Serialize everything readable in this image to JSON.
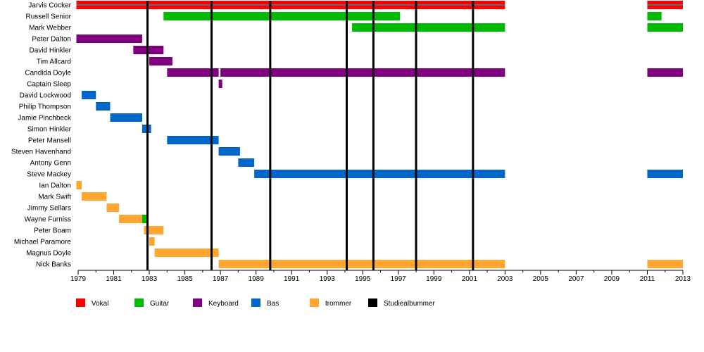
{
  "chart_data": {
    "type": "timeline",
    "x_range": [
      1979,
      2013
    ],
    "ticks": [
      "1979",
      "1981",
      "1983",
      "1985",
      "1987",
      "1989",
      "1991",
      "1993",
      "1995",
      "1997",
      "1999",
      "2001",
      "2003",
      "2005",
      "2007",
      "2009",
      "2011",
      "2013"
    ],
    "roles": [
      {
        "key": "vocal",
        "label": "Vokal",
        "color": "#ff0000"
      },
      {
        "key": "guitar",
        "label": "Guitar",
        "color": "#00bb00"
      },
      {
        "key": "keyboard",
        "label": "Keyboard",
        "color": "#800080"
      },
      {
        "key": "bass",
        "label": "Bas",
        "color": "#0066cc"
      },
      {
        "key": "drums",
        "label": "trommer",
        "color": "#ffa530"
      },
      {
        "key": "album",
        "label": "Studiealbummer",
        "color": "#000000"
      }
    ],
    "albums": [
      1982.9,
      1986.5,
      1989.8,
      1994.1,
      1995.6,
      1998.0,
      2001.2
    ],
    "members": [
      {
        "name": "Jarvis Cocker",
        "periods": [
          {
            "role": "vocal",
            "start": 1978.9,
            "end": 2003.0
          },
          {
            "role": "vocal",
            "start": 2011.0,
            "end": 2013.0
          }
        ]
      },
      {
        "name": "Russell Senior",
        "periods": [
          {
            "role": "guitar",
            "start": 1983.8,
            "end": 1997.1
          },
          {
            "role": "guitar",
            "start": 2011.0,
            "end": 2011.8
          }
        ]
      },
      {
        "name": "Mark Webber",
        "periods": [
          {
            "role": "guitar",
            "start": 1994.4,
            "end": 2003.0
          },
          {
            "role": "guitar",
            "start": 2011.0,
            "end": 2013.0
          }
        ]
      },
      {
        "name": "Peter Dalton",
        "periods": [
          {
            "role": "keyboard",
            "start": 1978.9,
            "end": 1982.6
          }
        ]
      },
      {
        "name": "David Hinkler",
        "periods": [
          {
            "role": "keyboard",
            "start": 1982.1,
            "end": 1983.8
          }
        ]
      },
      {
        "name": "Tim Allcard",
        "periods": [
          {
            "role": "keyboard",
            "start": 1983.0,
            "end": 1984.3
          }
        ]
      },
      {
        "name": "Candida Doyle",
        "periods": [
          {
            "role": "keyboard",
            "start": 1984.0,
            "end": 1986.9
          },
          {
            "role": "keyboard",
            "start": 1987.0,
            "end": 2003.0
          },
          {
            "role": "keyboard",
            "start": 2011.0,
            "end": 2013.0
          }
        ]
      },
      {
        "name": "Captain Sleep",
        "periods": [
          {
            "role": "keyboard",
            "start": 1986.9,
            "end": 1987.1
          }
        ]
      },
      {
        "name": "David Lockwood",
        "periods": [
          {
            "role": "bass",
            "start": 1979.2,
            "end": 1980.0
          }
        ]
      },
      {
        "name": "Philip Thompson",
        "periods": [
          {
            "role": "bass",
            "start": 1980.0,
            "end": 1980.8
          }
        ]
      },
      {
        "name": "Jamie Pinchbeck",
        "periods": [
          {
            "role": "bass",
            "start": 1980.8,
            "end": 1982.6
          }
        ]
      },
      {
        "name": "Simon Hinkler",
        "periods": [
          {
            "role": "bass",
            "start": 1982.6,
            "end": 1983.1
          }
        ]
      },
      {
        "name": "Peter Mansell",
        "periods": [
          {
            "role": "bass",
            "start": 1984.0,
            "end": 1986.9
          }
        ]
      },
      {
        "name": "Steven Havenhand",
        "periods": [
          {
            "role": "bass",
            "start": 1986.9,
            "end": 1988.1
          }
        ]
      },
      {
        "name": "Antony Genn",
        "periods": [
          {
            "role": "bass",
            "start": 1988.0,
            "end": 1988.9
          }
        ]
      },
      {
        "name": "Steve Mackey",
        "periods": [
          {
            "role": "bass",
            "start": 1988.9,
            "end": 2003.0
          },
          {
            "role": "bass",
            "start": 2011.0,
            "end": 2013.0
          }
        ]
      },
      {
        "name": "Ian Dalton",
        "periods": [
          {
            "role": "drums",
            "start": 1978.9,
            "end": 1979.2
          }
        ]
      },
      {
        "name": "Mark Swift",
        "periods": [
          {
            "role": "drums",
            "start": 1979.2,
            "end": 1980.6
          }
        ]
      },
      {
        "name": "Jimmy Sellars",
        "periods": [
          {
            "role": "drums",
            "start": 1980.6,
            "end": 1981.3
          }
        ]
      },
      {
        "name": "Wayne Furniss",
        "periods": [
          {
            "role": "drums",
            "start": 1981.3,
            "end": 1982.6
          },
          {
            "role": "guitar",
            "start": 1982.6,
            "end": 1982.9
          }
        ]
      },
      {
        "name": "Peter Boam",
        "periods": [
          {
            "role": "drums",
            "start": 1982.7,
            "end": 1983.8
          }
        ]
      },
      {
        "name": "Michael Paramore",
        "periods": [
          {
            "role": "drums",
            "start": 1983.0,
            "end": 1983.3
          }
        ]
      },
      {
        "name": "Magnus Doyle",
        "periods": [
          {
            "role": "drums",
            "start": 1983.3,
            "end": 1986.9
          }
        ]
      },
      {
        "name": "Nick Banks",
        "periods": [
          {
            "role": "drums",
            "start": 1986.9,
            "end": 2003.0
          },
          {
            "role": "drums",
            "start": 2011.0,
            "end": 2013.0
          }
        ]
      }
    ]
  }
}
